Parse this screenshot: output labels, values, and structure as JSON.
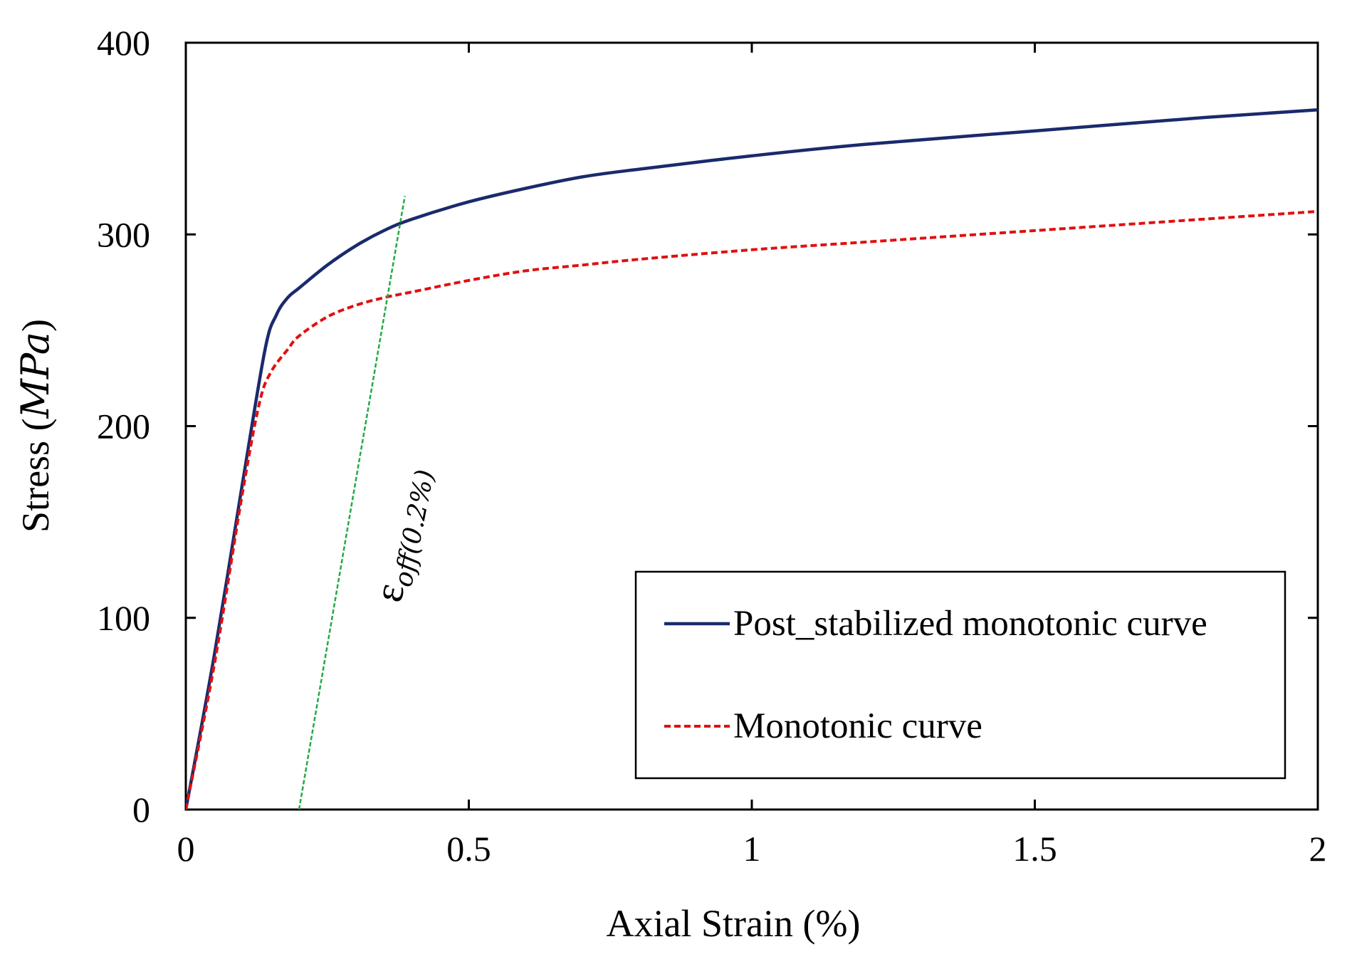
{
  "chart_data": {
    "type": "line",
    "title": "",
    "xlabel": "Axial Strain",
    "xlabel_unit": "(%)",
    "ylabel": "Stress",
    "ylabel_unit": "MPa",
    "xlim": [
      0,
      2
    ],
    "ylim": [
      0,
      400
    ],
    "x_ticks": [
      0,
      0.5,
      1,
      1.5,
      2
    ],
    "x_tick_labels": [
      "0",
      "0.5",
      "1",
      "1.5",
      "2"
    ],
    "y_ticks": [
      0,
      100,
      200,
      300,
      400
    ],
    "y_tick_labels": [
      "0",
      "100",
      "200",
      "300",
      "400"
    ],
    "grid": false,
    "legend_position": "bottom-right",
    "series": [
      {
        "name": "Post_stabilized monotonic curve",
        "color": "#1a2a6c",
        "style": "solid",
        "x": [
          0,
          0.05,
          0.1,
          0.14,
          0.16,
          0.18,
          0.2,
          0.25,
          0.3,
          0.35,
          0.4,
          0.5,
          0.6,
          0.7,
          0.8,
          1.0,
          1.2,
          1.5,
          1.8,
          2.0
        ],
        "y": [
          0,
          80,
          170,
          240,
          258,
          267,
          272,
          284,
          294,
          302,
          308,
          317,
          324,
          330,
          334,
          341,
          347,
          354,
          361,
          365
        ]
      },
      {
        "name": "Monotonic curve",
        "color": "#e01010",
        "style": "dashed",
        "x": [
          0,
          0.05,
          0.1,
          0.13,
          0.15,
          0.18,
          0.2,
          0.25,
          0.3,
          0.35,
          0.4,
          0.5,
          0.6,
          0.7,
          0.8,
          1.0,
          1.2,
          1.5,
          1.8,
          2.0
        ],
        "y": [
          0,
          75,
          165,
          212,
          228,
          240,
          247,
          257,
          263,
          267,
          270,
          276,
          281,
          284,
          287,
          292,
          296,
          302,
          308,
          312
        ]
      },
      {
        "name": "offset line",
        "color": "#22aa44",
        "style": "dotted",
        "x": [
          0.2,
          0.387
        ],
        "y": [
          0,
          320
        ]
      }
    ],
    "annotations": [
      {
        "symbol": "ε",
        "subscript": "off",
        "subscript_paren": "(0.2%)"
      }
    ]
  }
}
